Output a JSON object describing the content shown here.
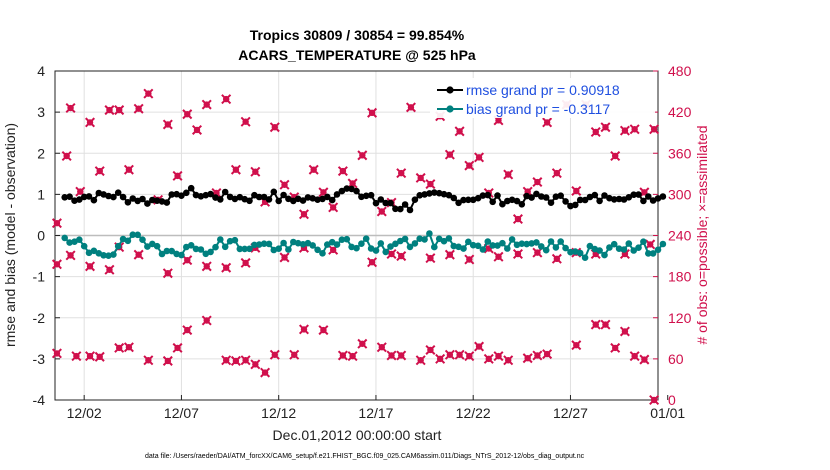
{
  "chart_data": {
    "type": "line",
    "title": "Tropics 30809 / 30854 = 99.854%",
    "subtitle": "ACARS_TEMPERATURE @ 525 hPa",
    "xlabel": "Dec.01,2012 00:00:00 start",
    "ylabel": "rmse and bias (model - observation)",
    "y2label": "# of obs: o=possible; ×=assimilated",
    "xlim": [
      0.5,
      31.5
    ],
    "ylim": [
      -4,
      4
    ],
    "y2lim": [
      0,
      480
    ],
    "x_ticks": [
      {
        "value": 2,
        "label": "12/02"
      },
      {
        "value": 7,
        "label": "12/07"
      },
      {
        "value": 12,
        "label": "12/12"
      },
      {
        "value": 17,
        "label": "12/17"
      },
      {
        "value": 22,
        "label": "12/22"
      },
      {
        "value": 27,
        "label": "12/27"
      },
      {
        "value": 32,
        "label": "01/01"
      }
    ],
    "y_ticks": [
      "-4",
      "-3",
      "-2",
      "-1",
      "0",
      "1",
      "2",
      "3",
      "4"
    ],
    "y2_ticks": [
      "0",
      "60",
      "120",
      "180",
      "240",
      "300",
      "360",
      "420",
      "480"
    ],
    "legend": {
      "position": "top-right",
      "entries": [
        "rmse grand pr = 0.90918",
        "bias grand pr = -0.3117"
      ]
    },
    "colors": {
      "rmse": "#000000",
      "bias": "#00807f",
      "obs": "#d0104c",
      "zero_line": "#bdbdbd",
      "grid": "#e0e0e0"
    },
    "rmse_levels": [
      0.93,
      0.95,
      0.98,
      0.9,
      0.85,
      0.9,
      1.05,
      0.97,
      0.95,
      0.92,
      0.97,
      0.9,
      0.87,
      0.95,
      1.1,
      0.98,
      0.8,
      0.7,
      0.92,
      0.95,
      0.9,
      0.93,
      0.87,
      0.85,
      0.93,
      0.88,
      0.82,
      0.9,
      0.98,
      0.92,
      0.95
    ],
    "bias_levels": [
      -0.2,
      -0.35,
      -0.4,
      -0.1,
      -0.25,
      -0.3,
      -0.35,
      -0.3,
      -0.2,
      -0.25,
      -0.25,
      -0.3,
      -0.25,
      -0.3,
      -0.2,
      -0.2,
      -0.3,
      -0.2,
      -0.1,
      -0.15,
      -0.2,
      -0.25,
      -0.2,
      -0.1,
      -0.3,
      -0.25,
      -0.5,
      -0.35,
      -0.2,
      -0.3,
      -0.3
    ],
    "obs_assimilated": [
      [
        0.6,
        258
      ],
      [
        1.1,
        356
      ],
      [
        1.3,
        426
      ],
      [
        1.8,
        304
      ],
      [
        2.3,
        405
      ],
      [
        2.8,
        334
      ],
      [
        3.3,
        423
      ],
      [
        3.8,
        423
      ],
      [
        4.3,
        336
      ],
      [
        4.8,
        425
      ],
      [
        5.3,
        447
      ],
      [
        5.8,
        292
      ],
      [
        6.3,
        402
      ],
      [
        6.8,
        327
      ],
      [
        7.3,
        417
      ],
      [
        7.8,
        394
      ],
      [
        8.3,
        431
      ],
      [
        8.8,
        302
      ],
      [
        9.3,
        439
      ],
      [
        9.8,
        336
      ],
      [
        10.3,
        406
      ],
      [
        10.8,
        333
      ],
      [
        11.3,
        289
      ],
      [
        11.8,
        398
      ],
      [
        12.3,
        314
      ],
      [
        12.8,
        296
      ],
      [
        13.3,
        271
      ],
      [
        13.8,
        336
      ],
      [
        14.3,
        303
      ],
      [
        14.8,
        281
      ],
      [
        15.3,
        334
      ],
      [
        15.8,
        316
      ],
      [
        16.3,
        357
      ],
      [
        16.8,
        419
      ],
      [
        17.3,
        275
      ],
      [
        17.8,
        288
      ],
      [
        18.3,
        331
      ],
      [
        18.8,
        427
      ],
      [
        19.3,
        324
      ],
      [
        19.8,
        315
      ],
      [
        20.3,
        414
      ],
      [
        20.8,
        358
      ],
      [
        21.3,
        392
      ],
      [
        21.8,
        342
      ],
      [
        22.3,
        354
      ],
      [
        22.8,
        302
      ],
      [
        23.3,
        408
      ],
      [
        23.8,
        329
      ],
      [
        24.3,
        264
      ],
      [
        24.8,
        304
      ],
      [
        25.3,
        318
      ],
      [
        25.8,
        405
      ],
      [
        26.3,
        331
      ],
      [
        26.8,
        431
      ],
      [
        27.3,
        305
      ],
      [
        27.8,
        431
      ],
      [
        28.3,
        391
      ],
      [
        28.8,
        398
      ],
      [
        29.3,
        356
      ],
      [
        29.8,
        393
      ],
      [
        30.3,
        395
      ],
      [
        30.8,
        303
      ],
      [
        31.3,
        395
      ],
      [
        0.6,
        68
      ],
      [
        1.6,
        64
      ],
      [
        2.3,
        64
      ],
      [
        2.8,
        63
      ],
      [
        3.8,
        76
      ],
      [
        4.3,
        77
      ],
      [
        5.3,
        58
      ],
      [
        6.3,
        57
      ],
      [
        6.8,
        76
      ],
      [
        7.3,
        102
      ],
      [
        8.3,
        116
      ],
      [
        9.3,
        58
      ],
      [
        9.8,
        57
      ],
      [
        10.3,
        58
      ],
      [
        10.8,
        52
      ],
      [
        11.3,
        40
      ],
      [
        11.8,
        66
      ],
      [
        12.8,
        66
      ],
      [
        13.3,
        103
      ],
      [
        14.3,
        102
      ],
      [
        15.3,
        65
      ],
      [
        15.8,
        64
      ],
      [
        16.3,
        82
      ],
      [
        17.3,
        77
      ],
      [
        17.8,
        65
      ],
      [
        18.3,
        65
      ],
      [
        19.3,
        58
      ],
      [
        19.8,
        73
      ],
      [
        20.3,
        60
      ],
      [
        20.8,
        66
      ],
      [
        21.3,
        66
      ],
      [
        21.8,
        64
      ],
      [
        22.3,
        78
      ],
      [
        22.8,
        60
      ],
      [
        23.3,
        64
      ],
      [
        23.8,
        58
      ],
      [
        24.8,
        61
      ],
      [
        25.3,
        65
      ],
      [
        25.8,
        67
      ],
      [
        27.3,
        80
      ],
      [
        28.3,
        110
      ],
      [
        28.8,
        110
      ],
      [
        29.3,
        76
      ],
      [
        29.8,
        100
      ],
      [
        30.3,
        64
      ],
      [
        30.8,
        59
      ],
      [
        31.3,
        0
      ],
      [
        0.6,
        198
      ],
      [
        1.3,
        211
      ],
      [
        2.3,
        195
      ],
      [
        3.3,
        190
      ],
      [
        3.8,
        223
      ],
      [
        4.8,
        212
      ],
      [
        6.3,
        185
      ],
      [
        7.3,
        204
      ],
      [
        8.3,
        195
      ],
      [
        9.3,
        193
      ],
      [
        10.3,
        200
      ],
      [
        10.8,
        222
      ],
      [
        12.3,
        208
      ],
      [
        13.3,
        222
      ],
      [
        14.8,
        219
      ],
      [
        16.8,
        201
      ],
      [
        17.8,
        213
      ],
      [
        18.3,
        210
      ],
      [
        19.8,
        207
      ],
      [
        20.8,
        212
      ],
      [
        21.8,
        205
      ],
      [
        22.8,
        221
      ],
      [
        23.3,
        209
      ],
      [
        24.3,
        213
      ],
      [
        25.3,
        215
      ],
      [
        26.3,
        206
      ],
      [
        27.3,
        215
      ],
      [
        28.3,
        213
      ],
      [
        29.8,
        213
      ],
      [
        31.1,
        227
      ]
    ]
  },
  "footer": "data file: /Users/raeder/DAI/ATM_forcXX/CAM6_setup/f.e21.FHIST_BGC.f09_025.CAM6assim.011/Diags_NTrS_2012-12/obs_diag_output.nc"
}
